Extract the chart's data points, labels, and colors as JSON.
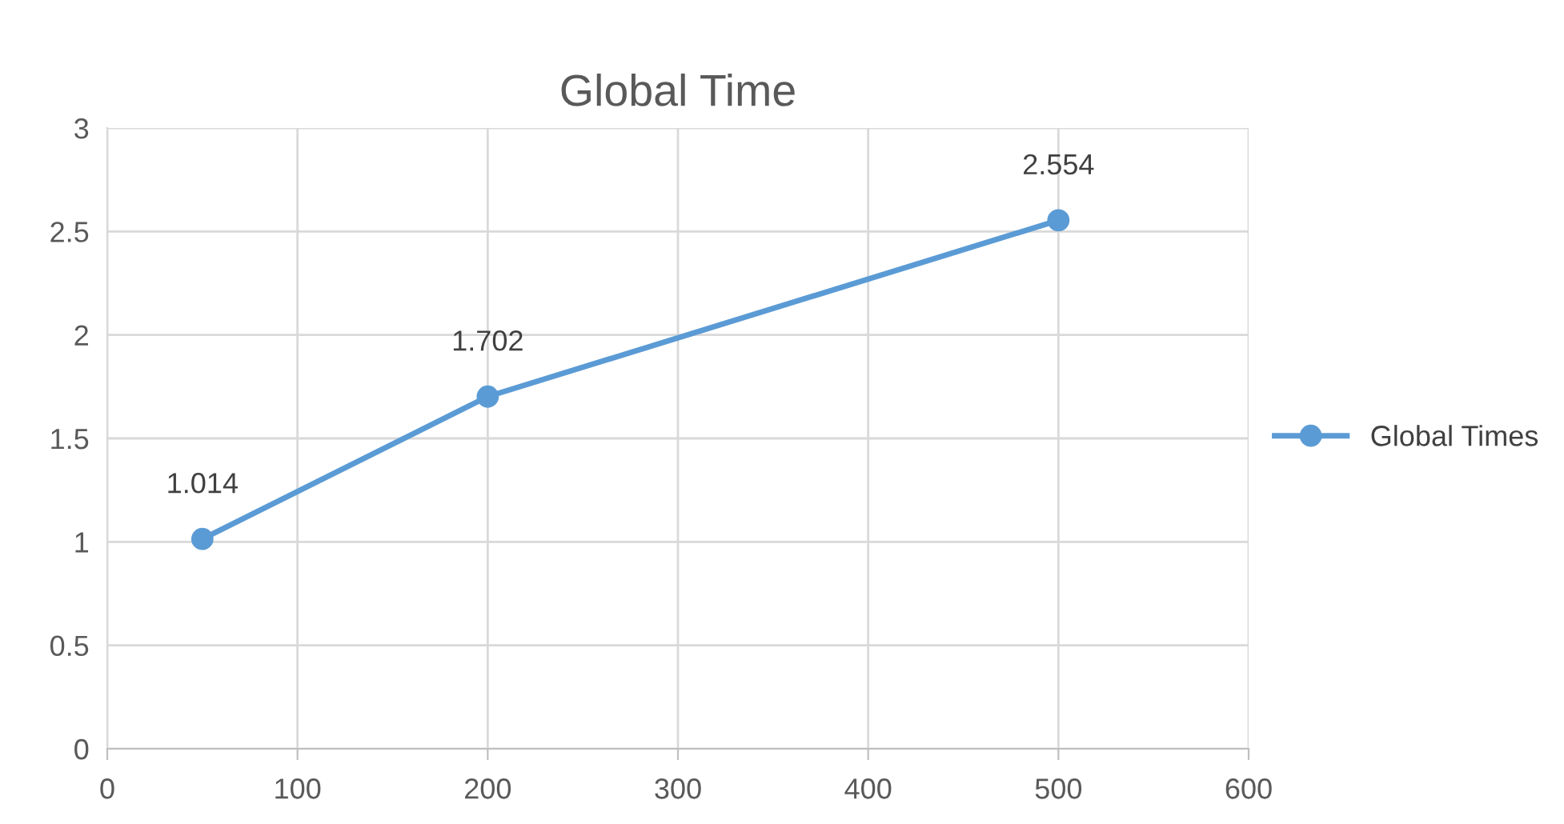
{
  "chart_data": {
    "type": "line",
    "title": "Global Time",
    "x": [
      50,
      200,
      500
    ],
    "series": [
      {
        "name": "Global Times",
        "color": "#5b9bd5",
        "values": [
          1.014,
          1.702,
          2.554
        ]
      }
    ],
    "xlim": [
      0,
      600
    ],
    "xticks": [
      0,
      100,
      200,
      300,
      400,
      500,
      600
    ],
    "ylim": [
      0,
      3
    ],
    "yticks": [
      0,
      0.5,
      1,
      1.5,
      2,
      2.5,
      3
    ],
    "grid": true,
    "legend": "right",
    "marker": "circle",
    "line_style": "solid",
    "data_labels": true
  }
}
